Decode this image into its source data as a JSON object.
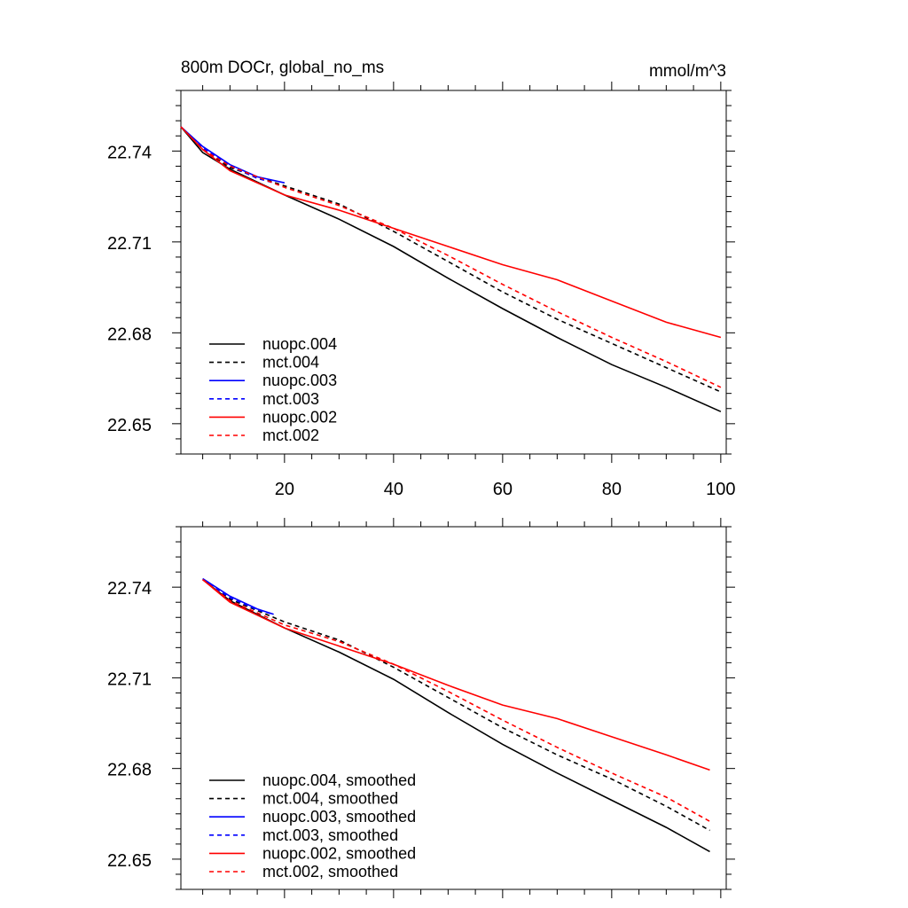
{
  "header": {
    "title": "800m DOCr, global_no_ms",
    "units": "mmol/m^3"
  },
  "chart_data": [
    {
      "type": "line",
      "xlim": [
        1,
        101
      ],
      "ylim": [
        22.64,
        22.76
      ],
      "x_ticks": [
        20,
        40,
        60,
        80,
        100
      ],
      "y_ticks": [
        22.65,
        22.68,
        22.71,
        22.74
      ],
      "y_tick_labels": [
        "22.65",
        "22.68",
        "22.71",
        "22.74"
      ],
      "x_tick_labels": [
        "20",
        "40",
        "60",
        "80",
        "100"
      ],
      "legend_position": "bottom-left",
      "series": [
        {
          "name": "nuopc.004",
          "color": "#000000",
          "dashed": false,
          "x": [
            1,
            5,
            10,
            20,
            30,
            40,
            50,
            60,
            70,
            80,
            90,
            100
          ],
          "y": [
            22.748,
            22.7395,
            22.734,
            22.7255,
            22.7175,
            22.7085,
            22.698,
            22.688,
            22.6785,
            22.6695,
            22.662,
            22.654
          ]
        },
        {
          "name": "mct.004",
          "color": "#000000",
          "dashed": true,
          "x": [
            1,
            5,
            10,
            20,
            30,
            40,
            50,
            60,
            70,
            80,
            90,
            100
          ],
          "y": [
            22.748,
            22.7405,
            22.7345,
            22.7285,
            22.7225,
            22.7135,
            22.7035,
            22.6935,
            22.6845,
            22.6765,
            22.6685,
            22.6605
          ]
        },
        {
          "name": "nuopc.003",
          "color": "#0000ff",
          "dashed": false,
          "x": [
            1,
            5,
            10,
            15,
            20
          ],
          "y": [
            22.748,
            22.7415,
            22.7355,
            22.7315,
            22.7295
          ]
        },
        {
          "name": "mct.003",
          "color": "#0000ff",
          "dashed": true,
          "x": [
            1,
            5,
            10,
            15,
            18
          ],
          "y": [
            22.748,
            22.741,
            22.735,
            22.731,
            22.7295
          ]
        },
        {
          "name": "nuopc.002",
          "color": "#ff0000",
          "dashed": false,
          "x": [
            1,
            5,
            10,
            20,
            30,
            40,
            50,
            60,
            70,
            80,
            90,
            100
          ],
          "y": [
            22.748,
            22.7405,
            22.7335,
            22.7255,
            22.7205,
            22.7145,
            22.7085,
            22.7025,
            22.6975,
            22.6905,
            22.6835,
            22.6785
          ]
        },
        {
          "name": "mct.002",
          "color": "#ff0000",
          "dashed": true,
          "x": [
            1,
            5,
            10,
            20,
            30,
            40,
            50,
            60,
            70,
            80,
            90,
            100
          ],
          "y": [
            22.748,
            22.7405,
            22.735,
            22.728,
            22.722,
            22.7145,
            22.7055,
            22.696,
            22.687,
            22.6785,
            22.6705,
            22.662
          ]
        }
      ]
    },
    {
      "type": "line",
      "xlim": [
        1,
        101
      ],
      "ylim": [
        22.64,
        22.76
      ],
      "x_ticks": [
        20,
        40,
        60,
        80,
        100
      ],
      "y_ticks": [
        22.65,
        22.68,
        22.71,
        22.74
      ],
      "y_tick_labels": [
        "22.65",
        "22.68",
        "22.71",
        "22.74"
      ],
      "legend_position": "bottom-left",
      "series": [
        {
          "name": "nuopc.004, smoothed",
          "color": "#000000",
          "dashed": false,
          "x": [
            5,
            10,
            20,
            30,
            40,
            50,
            60,
            70,
            80,
            90,
            98
          ],
          "y": [
            22.7425,
            22.7355,
            22.7265,
            22.7185,
            22.7095,
            22.6985,
            22.688,
            22.6785,
            22.6695,
            22.6605,
            22.6525
          ]
        },
        {
          "name": "mct.004, smoothed",
          "color": "#000000",
          "dashed": true,
          "x": [
            5,
            10,
            20,
            30,
            40,
            50,
            60,
            70,
            80,
            90,
            98
          ],
          "y": [
            22.7425,
            22.736,
            22.7285,
            22.7225,
            22.7135,
            22.7035,
            22.6935,
            22.6845,
            22.6765,
            22.6675,
            22.6595
          ]
        },
        {
          "name": "nuopc.003, smoothed",
          "color": "#0000ff",
          "dashed": false,
          "x": [
            5,
            10,
            15,
            18
          ],
          "y": [
            22.7428,
            22.737,
            22.7328,
            22.731
          ]
        },
        {
          "name": "mct.003, smoothed",
          "color": "#0000ff",
          "dashed": true,
          "x": [
            5,
            10,
            15,
            18
          ],
          "y": [
            22.7425,
            22.7365,
            22.7325,
            22.731
          ]
        },
        {
          "name": "nuopc.002, smoothed",
          "color": "#ff0000",
          "dashed": false,
          "x": [
            5,
            10,
            20,
            30,
            40,
            50,
            60,
            70,
            80,
            90,
            98
          ],
          "y": [
            22.7425,
            22.735,
            22.7265,
            22.7205,
            22.7145,
            22.7075,
            22.701,
            22.6965,
            22.6905,
            22.6845,
            22.6795
          ]
        },
        {
          "name": "mct.002, smoothed",
          "color": "#ff0000",
          "dashed": true,
          "x": [
            5,
            10,
            20,
            30,
            40,
            50,
            60,
            70,
            80,
            90,
            98
          ],
          "y": [
            22.7425,
            22.7355,
            22.7275,
            22.722,
            22.7145,
            22.7055,
            22.696,
            22.687,
            22.6785,
            22.6705,
            22.6625
          ]
        }
      ]
    }
  ]
}
